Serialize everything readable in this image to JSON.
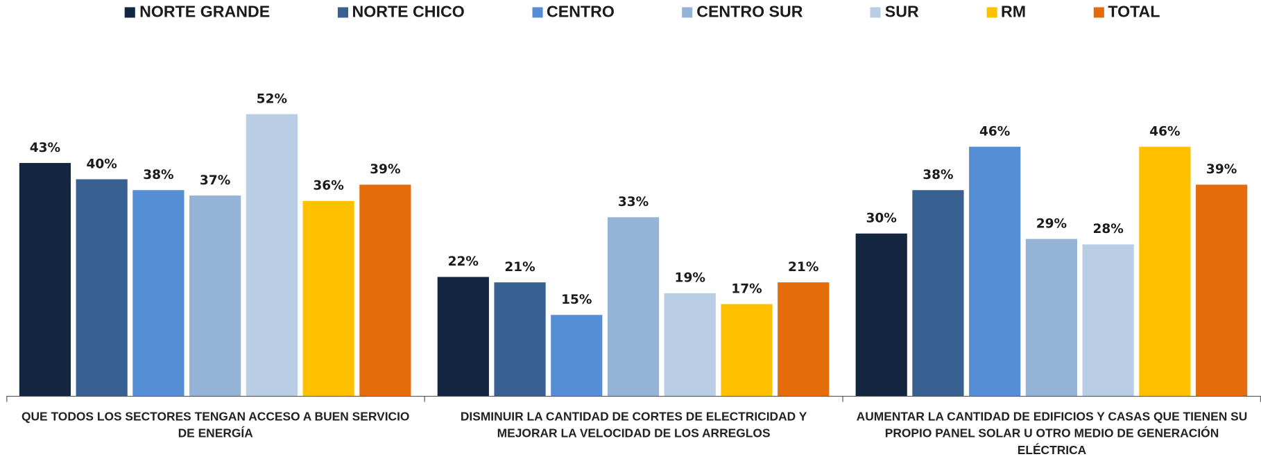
{
  "chart_data": {
    "type": "bar",
    "categories": [
      "QUE TODOS LOS SECTORES TENGAN ACCESO A BUEN SERVICIO DE ENERGÍA",
      "DISMINUIR LA CANTIDAD DE CORTES DE ELECTRICIDAD Y MEJORAR LA VELOCIDAD DE LOS ARREGLOS",
      "AUMENTAR LA CANTIDAD DE EDIFICIOS Y CASAS QUE TIENEN SU PROPIO PANEL SOLAR U OTRO MEDIO DE GENERACIÓN ELÉCTRICA"
    ],
    "series": [
      {
        "name": "NORTE GRANDE",
        "color": "#14253f",
        "values": [
          43,
          22,
          30
        ],
        "value_labels": [
          "43%",
          "22%",
          "30%"
        ]
      },
      {
        "name": "NORTE CHICO",
        "color": "#386090",
        "values": [
          40,
          21,
          38
        ],
        "value_labels": [
          "40%",
          "21%",
          "38%"
        ]
      },
      {
        "name": "CENTRO",
        "color": "#558ed5",
        "values": [
          38,
          15,
          46
        ],
        "value_labels": [
          "38%",
          "15%",
          "46%"
        ]
      },
      {
        "name": "CENTRO SUR",
        "color": "#95b3d7",
        "values": [
          37,
          33,
          29
        ],
        "value_labels": [
          "37%",
          "33%",
          "29%"
        ]
      },
      {
        "name": "SUR",
        "color": "#b9cde5",
        "values": [
          52,
          19,
          28
        ],
        "value_labels": [
          "52%",
          "19%",
          "28%"
        ]
      },
      {
        "name": "RM",
        "color": "#ffc000",
        "values": [
          36,
          17,
          46
        ],
        "value_labels": [
          "36%",
          "17%",
          "46%"
        ]
      },
      {
        "name": "TOTAL",
        "color": "#e46c0a",
        "values": [
          39,
          21,
          39
        ],
        "value_labels": [
          "39%",
          "21%",
          "39%"
        ]
      }
    ],
    "ylim": [
      0,
      60
    ],
    "legend": "top"
  }
}
